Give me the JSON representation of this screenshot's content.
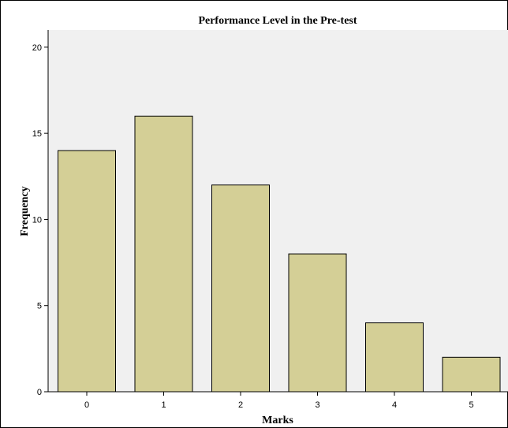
{
  "chart_data": {
    "type": "bar",
    "title": "Performance Level in the Pre-test",
    "xlabel": "Marks",
    "ylabel": "Frequency",
    "categories": [
      "0",
      "1",
      "2",
      "3",
      "4",
      "5"
    ],
    "values": [
      14,
      16,
      12,
      8,
      4,
      2
    ],
    "ylim": [
      0,
      21
    ],
    "yticks": [
      "0",
      "5",
      "10",
      "15",
      "20"
    ],
    "grid": false,
    "colors": {
      "bar_fill": "#d4cf96",
      "bar_stroke": "#000000",
      "plot_bg": "#f0f0f0"
    }
  }
}
